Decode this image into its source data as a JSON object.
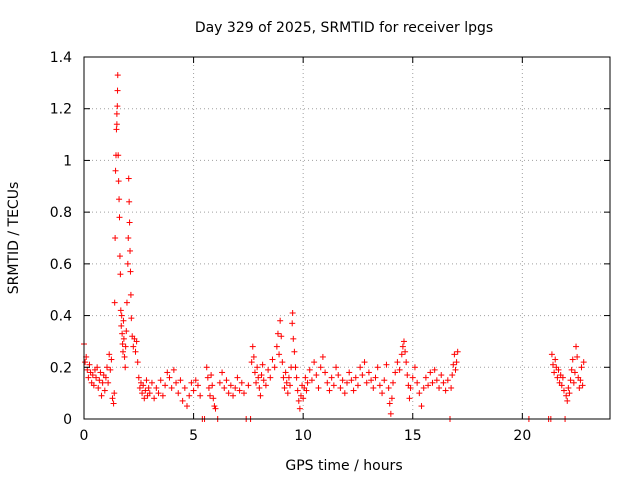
{
  "chart_data": {
    "type": "scatter",
    "title": "Day 329 of 2025, SRMTID for receiver lpgs",
    "xlabel": "GPS time / hours",
    "ylabel": "SRMTID / TECUs",
    "xlim": [
      0,
      24
    ],
    "ylim": [
      0,
      1.4
    ],
    "xticks": [
      0,
      5,
      10,
      15,
      20
    ],
    "xtick_labels": [
      "0",
      "5",
      "10",
      "15",
      "20"
    ],
    "yticks": [
      0,
      0.2,
      0.4,
      0.6,
      0.8,
      1.0,
      1.2,
      1.4
    ],
    "ytick_labels": [
      "0",
      "0.2",
      "0.4",
      "0.6",
      "0.8",
      "1",
      "1.2",
      "1.4"
    ],
    "grid": true,
    "marker": "+",
    "color": "#ff0000",
    "series": [
      {
        "name": "SRMTID",
        "points": [
          [
            0.0,
            0.29
          ],
          [
            0.05,
            0.22
          ],
          [
            0.1,
            0.24
          ],
          [
            0.15,
            0.19
          ],
          [
            0.2,
            0.16
          ],
          [
            0.25,
            0.21
          ],
          [
            0.3,
            0.18
          ],
          [
            0.35,
            0.14
          ],
          [
            0.4,
            0.17
          ],
          [
            0.45,
            0.13
          ],
          [
            0.5,
            0.19
          ],
          [
            0.55,
            0.16
          ],
          [
            0.6,
            0.2
          ],
          [
            0.65,
            0.12
          ],
          [
            0.7,
            0.15
          ],
          [
            0.75,
            0.18
          ],
          [
            0.8,
            0.09
          ],
          [
            0.85,
            0.14
          ],
          [
            0.9,
            0.17
          ],
          [
            0.95,
            0.11
          ],
          [
            1.0,
            0.16
          ],
          [
            1.05,
            0.2
          ],
          [
            1.1,
            0.14
          ],
          [
            1.15,
            0.25
          ],
          [
            1.2,
            0.19
          ],
          [
            1.25,
            0.23
          ],
          [
            1.3,
            0.08
          ],
          [
            1.35,
            0.06
          ],
          [
            1.38,
            0.1
          ],
          [
            1.4,
            0.45
          ],
          [
            1.42,
            0.7
          ],
          [
            1.44,
            0.96
          ],
          [
            1.46,
            1.02
          ],
          [
            1.48,
            1.12
          ],
          [
            1.5,
            1.14
          ],
          [
            1.5,
            1.18
          ],
          [
            1.52,
            1.21
          ],
          [
            1.53,
            1.27
          ],
          [
            1.54,
            1.33
          ],
          [
            1.56,
            1.02
          ],
          [
            1.58,
            0.92
          ],
          [
            1.6,
            0.85
          ],
          [
            1.62,
            0.78
          ],
          [
            1.64,
            0.63
          ],
          [
            1.66,
            0.56
          ],
          [
            1.68,
            0.42
          ],
          [
            1.7,
            0.36
          ],
          [
            1.72,
            0.4
          ],
          [
            1.74,
            0.33
          ],
          [
            1.76,
            0.29
          ],
          [
            1.78,
            0.26
          ],
          [
            1.8,
            0.38
          ],
          [
            1.82,
            0.31
          ],
          [
            1.85,
            0.24
          ],
          [
            1.88,
            0.2
          ],
          [
            1.9,
            0.28
          ],
          [
            1.93,
            0.34
          ],
          [
            1.96,
            0.45
          ],
          [
            2.0,
            0.6
          ],
          [
            2.02,
            0.7
          ],
          [
            2.04,
            0.93
          ],
          [
            2.06,
            0.84
          ],
          [
            2.08,
            0.76
          ],
          [
            2.1,
            0.65
          ],
          [
            2.12,
            0.57
          ],
          [
            2.14,
            0.48
          ],
          [
            2.16,
            0.39
          ],
          [
            2.2,
            0.32
          ],
          [
            2.25,
            0.28
          ],
          [
            2.3,
            0.31
          ],
          [
            2.35,
            0.26
          ],
          [
            2.4,
            0.3
          ],
          [
            2.45,
            0.22
          ],
          [
            2.5,
            0.16
          ],
          [
            2.55,
            0.12
          ],
          [
            2.6,
            0.14
          ],
          [
            2.65,
            0.1
          ],
          [
            2.7,
            0.13
          ],
          [
            2.75,
            0.08
          ],
          [
            2.8,
            0.11
          ],
          [
            2.85,
            0.15
          ],
          [
            2.9,
            0.09
          ],
          [
            2.95,
            0.12
          ],
          [
            3.0,
            0.1
          ],
          [
            3.1,
            0.14
          ],
          [
            3.2,
            0.08
          ],
          [
            3.3,
            0.12
          ],
          [
            3.4,
            0.1
          ],
          [
            3.5,
            0.15
          ],
          [
            3.6,
            0.09
          ],
          [
            3.7,
            0.13
          ],
          [
            3.8,
            0.18
          ],
          [
            3.9,
            0.16
          ],
          [
            4.0,
            0.12
          ],
          [
            4.1,
            0.19
          ],
          [
            4.2,
            0.14
          ],
          [
            4.3,
            0.1
          ],
          [
            4.4,
            0.15
          ],
          [
            4.5,
            0.07
          ],
          [
            4.6,
            0.12
          ],
          [
            4.7,
            0.05
          ],
          [
            4.8,
            0.09
          ],
          [
            4.9,
            0.14
          ],
          [
            5.0,
            0.11
          ],
          [
            5.1,
            0.15
          ],
          [
            5.2,
            0.13
          ],
          [
            5.3,
            0.09
          ],
          [
            5.4,
            0.0
          ],
          [
            5.5,
            0.0
          ],
          [
            5.6,
            0.2
          ],
          [
            5.65,
            0.16
          ],
          [
            5.7,
            0.12
          ],
          [
            5.75,
            0.09
          ],
          [
            5.8,
            0.17
          ],
          [
            5.85,
            0.13
          ],
          [
            5.9,
            0.08
          ],
          [
            5.95,
            0.05
          ],
          [
            6.0,
            0.04
          ],
          [
            6.1,
            0.0
          ],
          [
            6.2,
            0.14
          ],
          [
            6.3,
            0.18
          ],
          [
            6.4,
            0.12
          ],
          [
            6.5,
            0.15
          ],
          [
            6.6,
            0.1
          ],
          [
            6.7,
            0.13
          ],
          [
            6.8,
            0.09
          ],
          [
            6.9,
            0.12
          ],
          [
            7.0,
            0.16
          ],
          [
            7.1,
            0.11
          ],
          [
            7.2,
            0.14
          ],
          [
            7.3,
            0.1
          ],
          [
            7.4,
            0.0
          ],
          [
            7.5,
            0.13
          ],
          [
            7.6,
            0.0
          ],
          [
            7.65,
            0.22
          ],
          [
            7.7,
            0.28
          ],
          [
            7.75,
            0.24
          ],
          [
            7.8,
            0.18
          ],
          [
            7.85,
            0.14
          ],
          [
            7.9,
            0.2
          ],
          [
            7.95,
            0.16
          ],
          [
            8.0,
            0.12
          ],
          [
            8.05,
            0.09
          ],
          [
            8.1,
            0.17
          ],
          [
            8.15,
            0.21
          ],
          [
            8.2,
            0.15
          ],
          [
            8.3,
            0.13
          ],
          [
            8.4,
            0.19
          ],
          [
            8.5,
            0.16
          ],
          [
            8.6,
            0.23
          ],
          [
            8.7,
            0.2
          ],
          [
            8.8,
            0.28
          ],
          [
            8.85,
            0.33
          ],
          [
            8.9,
            0.25
          ],
          [
            8.95,
            0.38
          ],
          [
            9.0,
            0.32
          ],
          [
            9.05,
            0.22
          ],
          [
            9.1,
            0.16
          ],
          [
            9.15,
            0.12
          ],
          [
            9.2,
            0.18
          ],
          [
            9.25,
            0.14
          ],
          [
            9.3,
            0.1
          ],
          [
            9.35,
            0.16
          ],
          [
            9.4,
            0.13
          ],
          [
            9.45,
            0.2
          ],
          [
            9.5,
            0.37
          ],
          [
            9.52,
            0.41
          ],
          [
            9.55,
            0.31
          ],
          [
            9.6,
            0.26
          ],
          [
            9.65,
            0.2
          ],
          [
            9.7,
            0.16
          ],
          [
            9.75,
            0.11
          ],
          [
            9.8,
            0.07
          ],
          [
            9.85,
            0.04
          ],
          [
            9.9,
            0.09
          ],
          [
            9.95,
            0.13
          ],
          [
            10.0,
            0.08
          ],
          [
            10.05,
            0.12
          ],
          [
            10.1,
            0.16
          ],
          [
            10.15,
            0.11
          ],
          [
            10.2,
            0.14
          ],
          [
            10.3,
            0.19
          ],
          [
            10.4,
            0.15
          ],
          [
            10.5,
            0.22
          ],
          [
            10.6,
            0.17
          ],
          [
            10.7,
            0.12
          ],
          [
            10.8,
            0.2
          ],
          [
            10.9,
            0.24
          ],
          [
            11.0,
            0.18
          ],
          [
            11.1,
            0.14
          ],
          [
            11.2,
            0.11
          ],
          [
            11.3,
            0.16
          ],
          [
            11.4,
            0.13
          ],
          [
            11.5,
            0.2
          ],
          [
            11.6,
            0.17
          ],
          [
            11.7,
            0.12
          ],
          [
            11.8,
            0.15
          ],
          [
            11.9,
            0.1
          ],
          [
            12.0,
            0.14
          ],
          [
            12.1,
            0.18
          ],
          [
            12.2,
            0.15
          ],
          [
            12.3,
            0.11
          ],
          [
            12.4,
            0.16
          ],
          [
            12.5,
            0.13
          ],
          [
            12.6,
            0.2
          ],
          [
            12.7,
            0.17
          ],
          [
            12.8,
            0.22
          ],
          [
            12.9,
            0.14
          ],
          [
            13.0,
            0.18
          ],
          [
            13.1,
            0.15
          ],
          [
            13.2,
            0.12
          ],
          [
            13.3,
            0.16
          ],
          [
            13.4,
            0.2
          ],
          [
            13.5,
            0.13
          ],
          [
            13.6,
            0.1
          ],
          [
            13.7,
            0.15
          ],
          [
            13.8,
            0.21
          ],
          [
            13.9,
            0.12
          ],
          [
            13.95,
            0.06
          ],
          [
            14.0,
            0.02
          ],
          [
            14.05,
            0.08
          ],
          [
            14.1,
            0.14
          ],
          [
            14.2,
            0.18
          ],
          [
            14.3,
            0.22
          ],
          [
            14.4,
            0.19
          ],
          [
            14.5,
            0.25
          ],
          [
            14.55,
            0.28
          ],
          [
            14.6,
            0.3
          ],
          [
            14.65,
            0.26
          ],
          [
            14.7,
            0.22
          ],
          [
            14.75,
            0.17
          ],
          [
            14.8,
            0.13
          ],
          [
            14.85,
            0.08
          ],
          [
            14.9,
            0.12
          ],
          [
            15.0,
            0.16
          ],
          [
            15.1,
            0.2
          ],
          [
            15.2,
            0.14
          ],
          [
            15.3,
            0.1
          ],
          [
            15.4,
            0.05
          ],
          [
            15.5,
            0.12
          ],
          [
            15.6,
            0.16
          ],
          [
            15.7,
            0.13
          ],
          [
            15.8,
            0.18
          ],
          [
            15.9,
            0.14
          ],
          [
            16.0,
            0.19
          ],
          [
            16.1,
            0.15
          ],
          [
            16.2,
            0.12
          ],
          [
            16.3,
            0.17
          ],
          [
            16.4,
            0.14
          ],
          [
            16.5,
            0.11
          ],
          [
            16.6,
            0.15
          ],
          [
            16.7,
            0.0
          ],
          [
            16.75,
            0.12
          ],
          [
            16.8,
            0.17
          ],
          [
            16.85,
            0.21
          ],
          [
            16.9,
            0.25
          ],
          [
            16.95,
            0.19
          ],
          [
            17.0,
            0.22
          ],
          [
            17.05,
            0.26
          ],
          [
            20.3,
            0.0
          ],
          [
            21.2,
            0.0
          ],
          [
            21.3,
            0.0
          ],
          [
            21.35,
            0.25
          ],
          [
            21.4,
            0.21
          ],
          [
            21.45,
            0.18
          ],
          [
            21.5,
            0.23
          ],
          [
            21.55,
            0.2
          ],
          [
            21.6,
            0.16
          ],
          [
            21.65,
            0.19
          ],
          [
            21.7,
            0.14
          ],
          [
            21.75,
            0.17
          ],
          [
            21.8,
            0.13
          ],
          [
            21.85,
            0.16
          ],
          [
            21.9,
            0.11
          ],
          [
            21.95,
            0.0
          ],
          [
            22.0,
            0.09
          ],
          [
            22.05,
            0.07
          ],
          [
            22.1,
            0.12
          ],
          [
            22.15,
            0.1
          ],
          [
            22.2,
            0.15
          ],
          [
            22.25,
            0.19
          ],
          [
            22.3,
            0.23
          ],
          [
            22.35,
            0.14
          ],
          [
            22.4,
            0.18
          ],
          [
            22.45,
            0.28
          ],
          [
            22.5,
            0.24
          ],
          [
            22.55,
            0.16
          ],
          [
            22.6,
            0.12
          ],
          [
            22.65,
            0.15
          ],
          [
            22.7,
            0.2
          ],
          [
            22.75,
            0.13
          ],
          [
            22.8,
            0.22
          ]
        ]
      }
    ]
  }
}
